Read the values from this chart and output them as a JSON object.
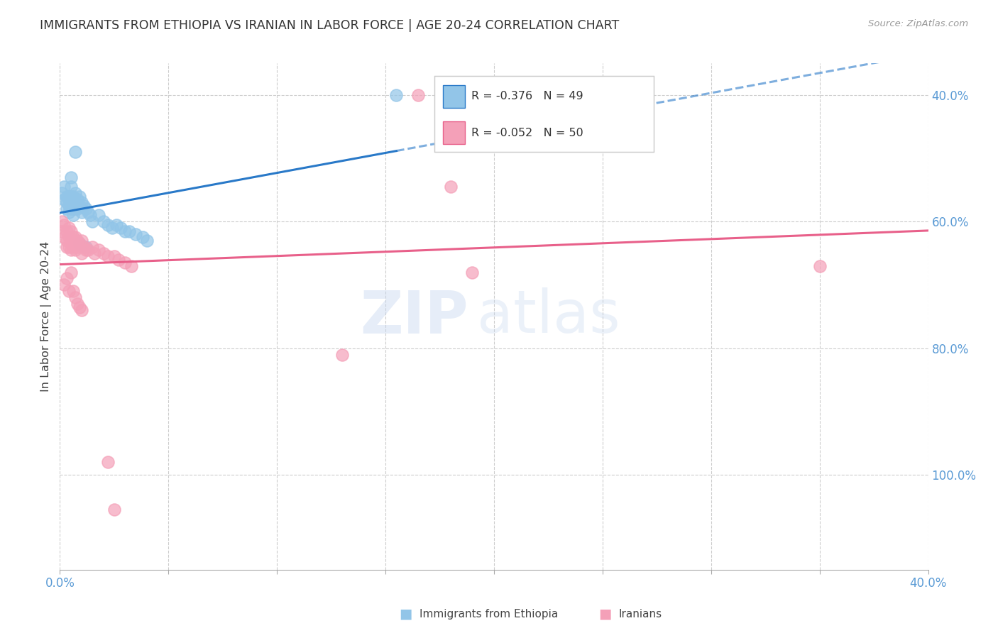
{
  "title": "IMMIGRANTS FROM ETHIOPIA VS IRANIAN IN LABOR FORCE | AGE 20-24 CORRELATION CHART",
  "source": "Source: ZipAtlas.com",
  "ylabel": "In Labor Force | Age 20-24",
  "legend_r1": "-0.376",
  "legend_n1": "49",
  "legend_r2": "-0.052",
  "legend_n2": "50",
  "legend_label1": "Immigrants from Ethiopia",
  "legend_label2": "Iranians",
  "watermark_zip": "ZIP",
  "watermark_atlas": "atlas",
  "ethiopia_color": "#92C5E8",
  "iranian_color": "#F4A0B8",
  "ethiopia_line_color": "#2979C8",
  "iranian_line_color": "#E8608A",
  "background_color": "#FFFFFF",
  "grid_color": "#CCCCCC",
  "right_axis_color": "#5B9BD5",
  "title_color": "#333333",
  "ethiopia_x": [
    0.001,
    0.002,
    0.002,
    0.003,
    0.003,
    0.003,
    0.004,
    0.004,
    0.004,
    0.004,
    0.005,
    0.005,
    0.005,
    0.005,
    0.005,
    0.006,
    0.006,
    0.006,
    0.006,
    0.007,
    0.007,
    0.007,
    0.008,
    0.008,
    0.009,
    0.009,
    0.01,
    0.01,
    0.011,
    0.012,
    0.013,
    0.014,
    0.015,
    0.018,
    0.02,
    0.022,
    0.024,
    0.026,
    0.028,
    0.03,
    0.032,
    0.035,
    0.038,
    0.04,
    0.155,
    0.005,
    0.007,
    0.009,
    0.012
  ],
  "ethiopia_y": [
    0.845,
    0.855,
    0.835,
    0.84,
    0.83,
    0.82,
    0.835,
    0.825,
    0.84,
    0.815,
    0.855,
    0.84,
    0.835,
    0.82,
    0.83,
    0.84,
    0.83,
    0.82,
    0.81,
    0.845,
    0.83,
    0.82,
    0.835,
    0.82,
    0.84,
    0.825,
    0.83,
    0.815,
    0.825,
    0.82,
    0.815,
    0.81,
    0.8,
    0.81,
    0.8,
    0.795,
    0.79,
    0.795,
    0.79,
    0.785,
    0.785,
    0.78,
    0.775,
    0.77,
    1.0,
    0.87,
    0.91,
    0.765,
    0.76
  ],
  "iranian_x": [
    0.001,
    0.001,
    0.002,
    0.002,
    0.003,
    0.003,
    0.003,
    0.004,
    0.004,
    0.004,
    0.005,
    0.005,
    0.005,
    0.006,
    0.006,
    0.007,
    0.007,
    0.008,
    0.008,
    0.009,
    0.01,
    0.01,
    0.011,
    0.012,
    0.013,
    0.015,
    0.016,
    0.018,
    0.02,
    0.022,
    0.025,
    0.027,
    0.03,
    0.033,
    0.19,
    0.005,
    0.003,
    0.002,
    0.004,
    0.006,
    0.007,
    0.008,
    0.009,
    0.01,
    0.13,
    0.165,
    0.18,
    0.35,
    0.022,
    0.025
  ],
  "iranian_y": [
    0.8,
    0.785,
    0.795,
    0.775,
    0.785,
    0.77,
    0.76,
    0.79,
    0.775,
    0.76,
    0.785,
    0.77,
    0.755,
    0.775,
    0.76,
    0.775,
    0.755,
    0.77,
    0.76,
    0.765,
    0.77,
    0.75,
    0.76,
    0.755,
    0.755,
    0.76,
    0.75,
    0.755,
    0.75,
    0.745,
    0.745,
    0.74,
    0.735,
    0.73,
    0.72,
    0.72,
    0.71,
    0.7,
    0.69,
    0.69,
    0.68,
    0.67,
    0.665,
    0.66,
    0.59,
    1.0,
    0.855,
    0.73,
    0.42,
    0.345
  ],
  "xlim": [
    0.0,
    0.4
  ],
  "ylim": [
    0.25,
    1.05
  ],
  "xtick_positions": [
    0.0,
    0.05,
    0.1,
    0.15,
    0.2,
    0.25,
    0.3,
    0.35,
    0.4
  ],
  "ytick_positions": [
    0.4,
    0.6,
    0.8,
    1.0
  ],
  "yright_labels": [
    "100.0%",
    "80.0%",
    "60.0%",
    "40.0%"
  ],
  "eth_line_x_start": 0.0,
  "eth_line_x_solid_end": 0.155,
  "eth_line_x_dashed_end": 0.4,
  "iran_line_x_start": 0.0,
  "iran_line_x_end": 0.4
}
